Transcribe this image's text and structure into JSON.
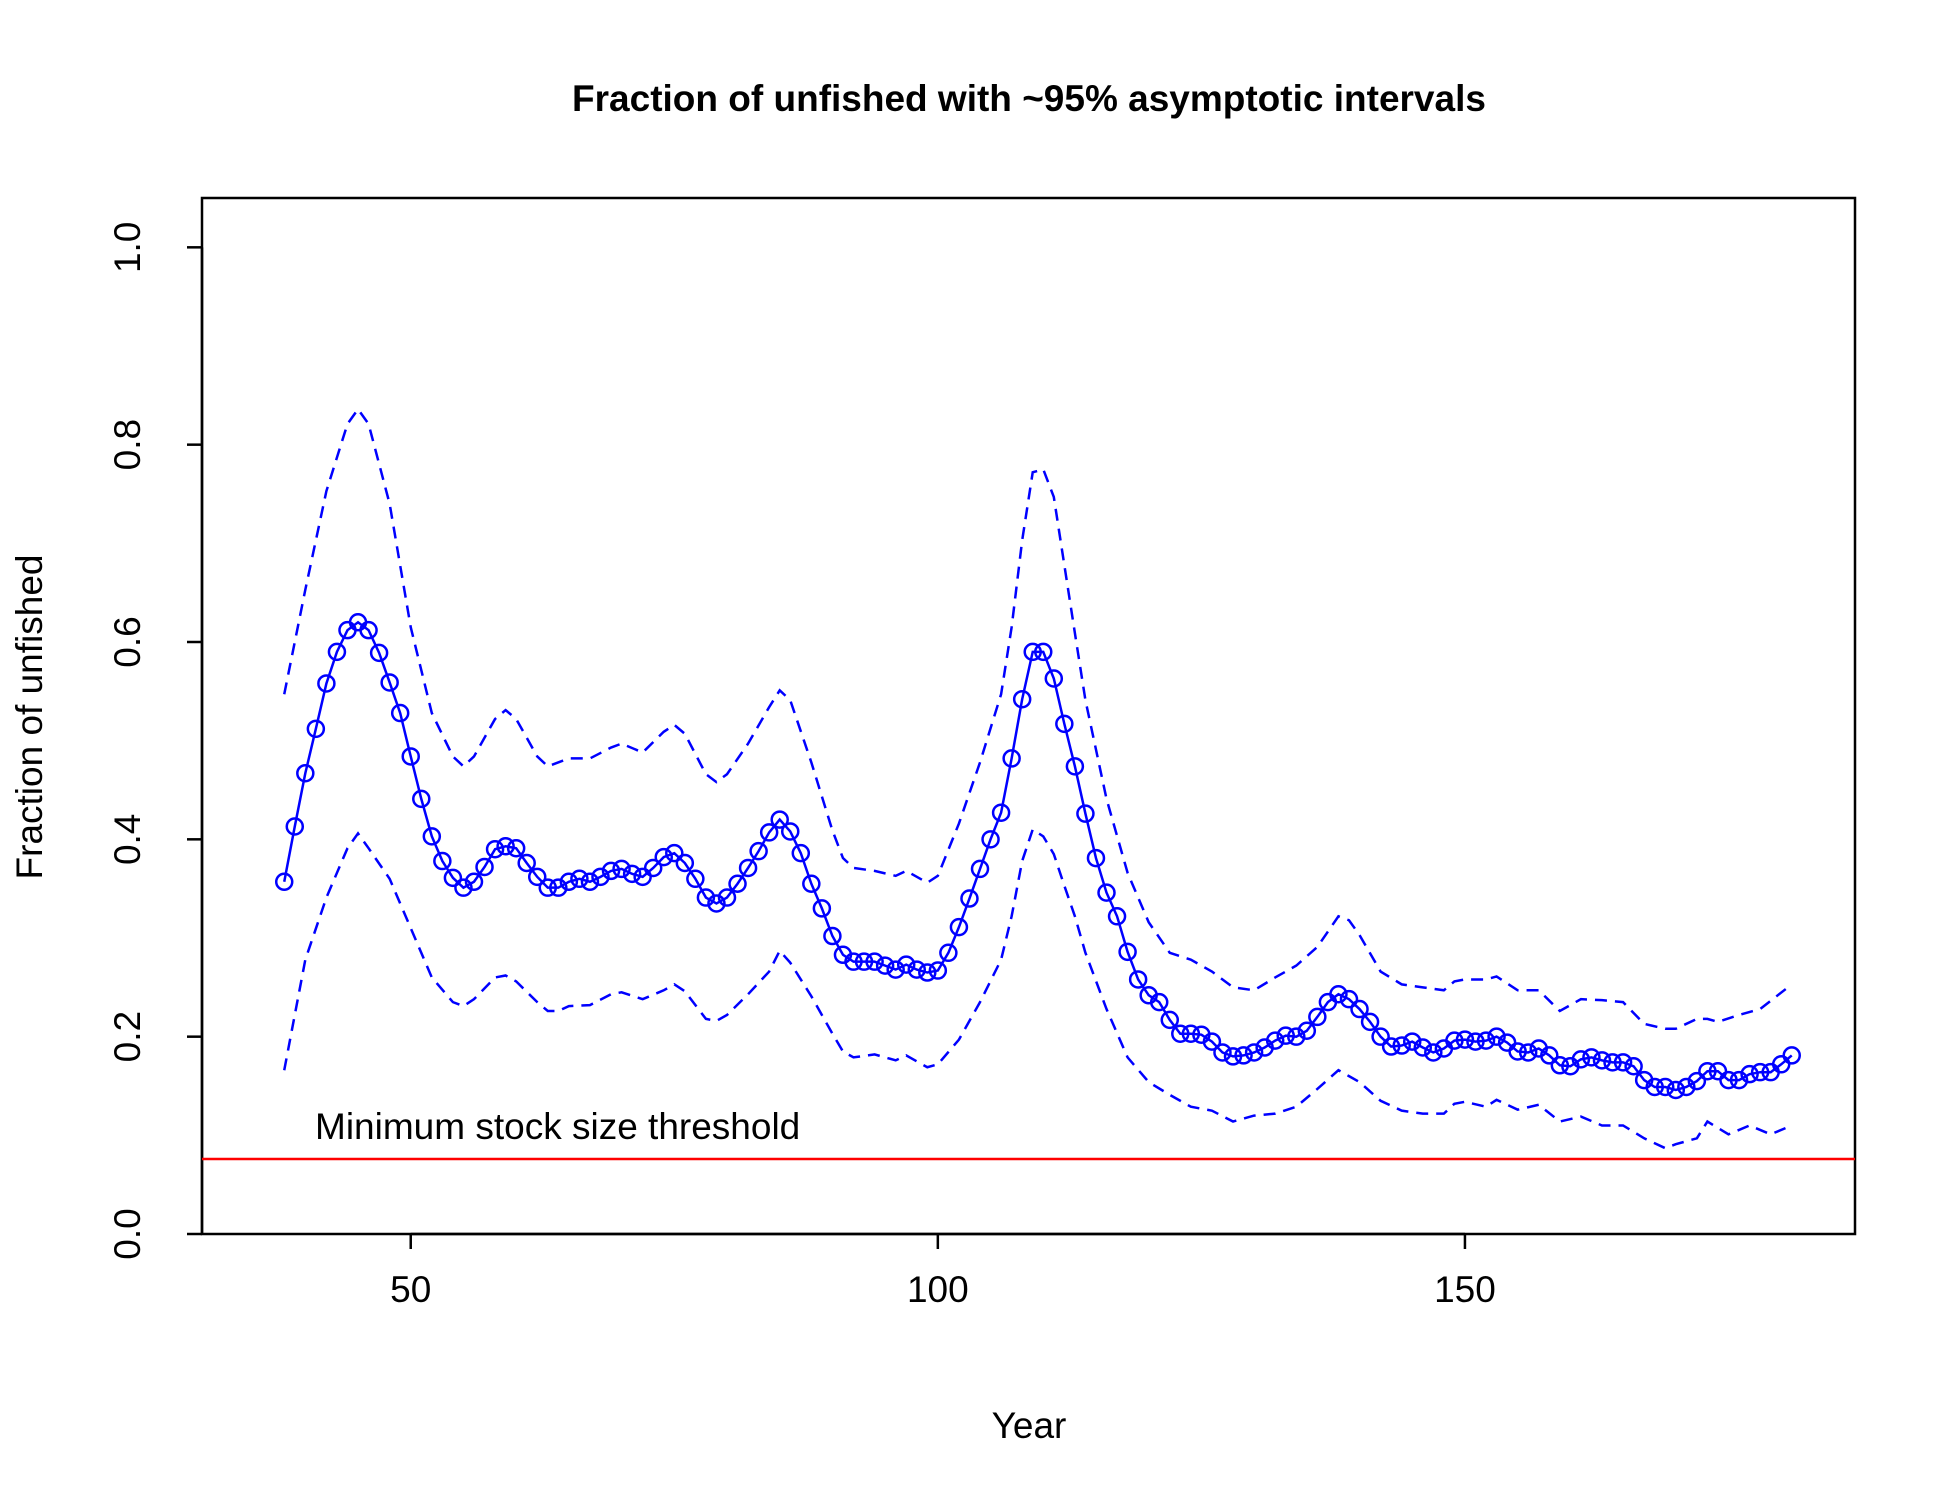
{
  "chart_data": {
    "type": "line",
    "title": "Fraction of unfished with ~95% asymptotic intervals",
    "x_label": "Year",
    "y_label": "Fraction of unfished",
    "xlim": [
      30.2,
      187
    ],
    "ylim": [
      0,
      1.05
    ],
    "xticks": [
      50,
      100,
      150
    ],
    "yticks": [
      {
        "value": 0,
        "label": "0.0"
      },
      0.2,
      0.4,
      0.6,
      0.8,
      {
        "value": 1,
        "label": "1.0"
      }
    ],
    "series": [
      {
        "color": "#0000ff",
        "style": "solid-points",
        "x": [
          38,
          39,
          40,
          41,
          42,
          43,
          44,
          45,
          46,
          47,
          48,
          49,
          50,
          51,
          52,
          53,
          54,
          55,
          56,
          57,
          58,
          59,
          60,
          61,
          62,
          63,
          64,
          65,
          66,
          67,
          68,
          69,
          70,
          71,
          72,
          73,
          74,
          75,
          76,
          77,
          78,
          79,
          80,
          81,
          82,
          83,
          84,
          85,
          86,
          87,
          88,
          89,
          90,
          91,
          92,
          93,
          94,
          95,
          96,
          97,
          98,
          99,
          100,
          101,
          102,
          103,
          104,
          105,
          106,
          107,
          108,
          109,
          110,
          111,
          112,
          113,
          114,
          115,
          116,
          117,
          118,
          119,
          120,
          121,
          122,
          123,
          124,
          125,
          126,
          127,
          128,
          129,
          130,
          131,
          132,
          133,
          134,
          135,
          136,
          137,
          138,
          139,
          140,
          141,
          142,
          143,
          144,
          145,
          146,
          147,
          148,
          149,
          150,
          151,
          152,
          153,
          154,
          155,
          156,
          157,
          158,
          159,
          160,
          161,
          162,
          163,
          164,
          165,
          166,
          167,
          168,
          169,
          170,
          171,
          172,
          173,
          174,
          175,
          176,
          177,
          178,
          179,
          180,
          181
        ],
        "values": [
          0.357,
          0.413,
          0.467,
          0.512,
          0.558,
          0.59,
          0.612,
          0.62,
          0.612,
          0.589,
          0.559,
          0.528,
          0.484,
          0.441,
          0.403,
          0.378,
          0.361,
          0.351,
          0.357,
          0.372,
          0.39,
          0.393,
          0.391,
          0.376,
          0.362,
          0.351,
          0.351,
          0.357,
          0.36,
          0.357,
          0.362,
          0.368,
          0.37,
          0.365,
          0.362,
          0.371,
          0.382,
          0.386,
          0.376,
          0.36,
          0.341,
          0.335,
          0.341,
          0.355,
          0.371,
          0.388,
          0.407,
          0.42,
          0.408,
          0.386,
          0.355,
          0.33,
          0.302,
          0.283,
          0.276,
          0.276,
          0.276,
          0.272,
          0.268,
          0.273,
          0.268,
          0.265,
          0.267,
          0.285,
          0.311,
          0.34,
          0.37,
          0.4,
          0.427,
          0.482,
          0.542,
          0.59,
          0.59,
          0.563,
          0.517,
          0.474,
          0.426,
          0.381,
          0.346,
          0.322,
          0.286,
          0.258,
          0.242,
          0.235,
          0.217,
          0.203,
          0.203,
          0.202,
          0.195,
          0.184,
          0.18,
          0.181,
          0.184,
          0.189,
          0.196,
          0.201,
          0.2,
          0.206,
          0.22,
          0.235,
          0.243,
          0.238,
          0.228,
          0.215,
          0.2,
          0.19,
          0.191,
          0.195,
          0.189,
          0.184,
          0.188,
          0.196,
          0.197,
          0.195,
          0.196,
          0.2,
          0.194,
          0.185,
          0.184,
          0.188,
          0.181,
          0.171,
          0.17,
          0.177,
          0.179,
          0.176,
          0.174,
          0.174,
          0.17,
          0.156,
          0.149,
          0.149,
          0.146,
          0.149,
          0.155,
          0.165,
          0.165,
          0.156,
          0.156,
          0.162,
          0.164,
          0.164,
          0.172,
          0.181
        ]
      },
      {
        "color": "#0000ff",
        "style": "dashed",
        "x": [
          38,
          40,
          42,
          44,
          45,
          46,
          48,
          50,
          52,
          54,
          55,
          56,
          58,
          59,
          60,
          62,
          63,
          65,
          67,
          69,
          70,
          72,
          74,
          75,
          76,
          78,
          79,
          80,
          82,
          84,
          85,
          86,
          88,
          90,
          91,
          92,
          94,
          96,
          97,
          99,
          100,
          102,
          104,
          106,
          107,
          108,
          109,
          110,
          111,
          112,
          113,
          114,
          116,
          118,
          120,
          122,
          124,
          126,
          128,
          130,
          132,
          134,
          136,
          138,
          139,
          140,
          142,
          144,
          146,
          148,
          149,
          150,
          152,
          153,
          155,
          157,
          159,
          161,
          163,
          165,
          167,
          169,
          170,
          172,
          173,
          174,
          176,
          178,
          181
        ],
        "values": [
          0.547,
          0.653,
          0.753,
          0.821,
          0.836,
          0.821,
          0.74,
          0.615,
          0.528,
          0.484,
          0.474,
          0.484,
          0.522,
          0.531,
          0.522,
          0.484,
          0.474,
          0.482,
          0.482,
          0.493,
          0.497,
          0.488,
          0.509,
          0.516,
          0.507,
          0.466,
          0.458,
          0.466,
          0.497,
          0.534,
          0.551,
          0.541,
          0.478,
          0.409,
          0.381,
          0.371,
          0.368,
          0.363,
          0.368,
          0.356,
          0.363,
          0.416,
          0.478,
          0.547,
          0.615,
          0.703,
          0.772,
          0.775,
          0.747,
          0.678,
          0.609,
          0.541,
          0.441,
          0.366,
          0.316,
          0.285,
          0.278,
          0.266,
          0.25,
          0.247,
          0.26,
          0.272,
          0.291,
          0.322,
          0.318,
          0.303,
          0.266,
          0.253,
          0.25,
          0.247,
          0.256,
          0.258,
          0.258,
          0.261,
          0.247,
          0.247,
          0.226,
          0.238,
          0.237,
          0.235,
          0.213,
          0.208,
          0.208,
          0.218,
          0.218,
          0.215,
          0.222,
          0.228,
          0.253
        ]
      },
      {
        "color": "#0000ff",
        "style": "dashed",
        "x": [
          38,
          40,
          42,
          44,
          45,
          46,
          48,
          50,
          52,
          54,
          55,
          56,
          58,
          59,
          60,
          62,
          63,
          64,
          65,
          67,
          69,
          70,
          72,
          74,
          75,
          76,
          78,
          79,
          80,
          82,
          84,
          85,
          86,
          88,
          90,
          91,
          92,
          94,
          96,
          97,
          99,
          100,
          102,
          104,
          106,
          107,
          108,
          109,
          110,
          111,
          112,
          113,
          114,
          116,
          118,
          120,
          122,
          124,
          126,
          128,
          130,
          132,
          134,
          136,
          138,
          139,
          140,
          142,
          144,
          146,
          148,
          149,
          150,
          152,
          153,
          155,
          157,
          159,
          161,
          163,
          165,
          167,
          169,
          170,
          172,
          173,
          175,
          177,
          179,
          181
        ],
        "values": [
          0.166,
          0.278,
          0.341,
          0.391,
          0.406,
          0.391,
          0.36,
          0.31,
          0.26,
          0.235,
          0.231,
          0.238,
          0.26,
          0.262,
          0.256,
          0.235,
          0.226,
          0.226,
          0.231,
          0.232,
          0.243,
          0.245,
          0.238,
          0.247,
          0.253,
          0.246,
          0.218,
          0.216,
          0.222,
          0.243,
          0.266,
          0.287,
          0.275,
          0.241,
          0.203,
          0.185,
          0.179,
          0.182,
          0.176,
          0.181,
          0.169,
          0.172,
          0.197,
          0.235,
          0.278,
          0.322,
          0.378,
          0.41,
          0.403,
          0.385,
          0.353,
          0.322,
          0.285,
          0.228,
          0.179,
          0.154,
          0.141,
          0.129,
          0.125,
          0.114,
          0.12,
          0.122,
          0.129,
          0.147,
          0.166,
          0.16,
          0.154,
          0.135,
          0.125,
          0.122,
          0.122,
          0.132,
          0.134,
          0.129,
          0.136,
          0.126,
          0.131,
          0.114,
          0.119,
          0.11,
          0.11,
          0.097,
          0.087,
          0.091,
          0.097,
          0.114,
          0.101,
          0.11,
          0.101,
          0.11
        ]
      }
    ],
    "hlines": [
      {
        "value": 0.076,
        "color": "#ff0000",
        "label": "Minimum stock size threshold"
      }
    ]
  }
}
